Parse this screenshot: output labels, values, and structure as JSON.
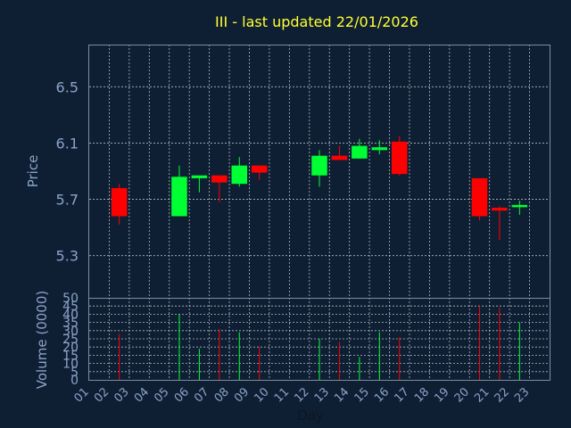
{
  "chart_data": {
    "type": "candlestick",
    "title": "III - last updated 22/01/2026",
    "xlabel": "Day",
    "price_panel": {
      "ylabel": "Price",
      "ylim": [
        5.0,
        6.8
      ],
      "yticks": [
        "5.3",
        "5.7",
        "6.1",
        "6.5"
      ],
      "ytick_values": [
        5.3,
        5.7,
        6.1,
        6.5
      ],
      "grid": true
    },
    "volume_panel": {
      "ylabel": "Volume (0000)",
      "ylim": [
        0,
        50
      ],
      "yticks": [
        "0",
        "5",
        "10",
        "15",
        "20",
        "25",
        "30",
        "35",
        "40",
        "45",
        "50"
      ],
      "ytick_values": [
        0,
        5,
        10,
        15,
        20,
        25,
        30,
        35,
        40,
        45,
        50
      ],
      "grid": true
    },
    "x_categories": [
      "01",
      "02",
      "03",
      "04",
      "05",
      "06",
      "07",
      "08",
      "09",
      "10",
      "11",
      "12",
      "13",
      "14",
      "15",
      "16",
      "17",
      "18",
      "19",
      "20",
      "21",
      "22",
      "23"
    ],
    "candles": [
      {
        "day": "02",
        "open": 5.78,
        "high": 5.81,
        "low": 5.52,
        "close": 5.58,
        "volume": 28
      },
      {
        "day": "05",
        "open": 5.58,
        "high": 5.94,
        "low": 5.58,
        "close": 5.86,
        "volume": 40
      },
      {
        "day": "06",
        "open": 5.85,
        "high": 5.87,
        "low": 5.75,
        "close": 5.87,
        "volume": 19
      },
      {
        "day": "07",
        "open": 5.87,
        "high": 5.87,
        "low": 5.68,
        "close": 5.82,
        "volume": 31
      },
      {
        "day": "08",
        "open": 5.81,
        "high": 6.0,
        "low": 5.79,
        "close": 5.94,
        "volume": 29
      },
      {
        "day": "09",
        "open": 5.94,
        "high": 5.94,
        "low": 5.84,
        "close": 5.89,
        "volume": 20
      },
      {
        "day": "12",
        "open": 5.87,
        "high": 6.05,
        "low": 5.79,
        "close": 6.01,
        "volume": 25
      },
      {
        "day": "13",
        "open": 6.01,
        "high": 6.08,
        "low": 5.98,
        "close": 5.98,
        "volume": 23
      },
      {
        "day": "14",
        "open": 5.99,
        "high": 6.13,
        "low": 5.99,
        "close": 6.08,
        "volume": 14
      },
      {
        "day": "15",
        "open": 6.05,
        "high": 6.12,
        "low": 6.02,
        "close": 6.07,
        "volume": 29
      },
      {
        "day": "16",
        "open": 6.11,
        "high": 6.15,
        "low": 5.87,
        "close": 5.88,
        "volume": 26
      },
      {
        "day": "20",
        "open": 5.85,
        "high": 5.85,
        "low": 5.55,
        "close": 5.58,
        "volume": 45
      },
      {
        "day": "21",
        "open": 5.64,
        "high": 5.65,
        "low": 5.41,
        "close": 5.62,
        "volume": 44
      },
      {
        "day": "22",
        "open": 5.65,
        "high": 5.69,
        "low": 5.59,
        "close": 5.66,
        "volume": 35
      }
    ],
    "colors": {
      "up": "#00ff33",
      "down": "#ff0000",
      "background": "#0f1f33",
      "title": "#ffff33",
      "ticks": "#8aa3c9",
      "grid": "#c9d2de"
    }
  }
}
